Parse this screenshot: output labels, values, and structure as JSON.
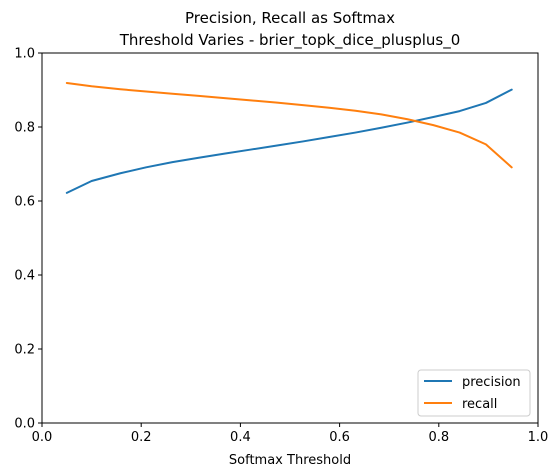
{
  "chart_data": {
    "type": "line",
    "title_lines": [
      "Precision, Recall as Softmax",
      "Threshold Varies - brier_topk_dice_plusplus_0"
    ],
    "xlabel": "Softmax Threshold",
    "ylabel": "",
    "xlim": [
      0.0,
      1.0
    ],
    "ylim": [
      0.0,
      1.0
    ],
    "xticks": [
      0.0,
      0.2,
      0.4,
      0.6,
      0.8,
      1.0
    ],
    "xtick_labels": [
      "0.0",
      "0.2",
      "0.4",
      "0.6",
      "0.8",
      "1.0"
    ],
    "yticks": [
      0.0,
      0.2,
      0.4,
      0.6,
      0.8,
      1.0
    ],
    "ytick_labels": [
      "0.0",
      "0.2",
      "0.4",
      "0.6",
      "0.8",
      "1.0"
    ],
    "grid": false,
    "legend_position": "lower right",
    "x": [
      0.05,
      0.1,
      0.158,
      0.21,
      0.263,
      0.316,
      0.368,
      0.421,
      0.474,
      0.526,
      0.579,
      0.632,
      0.684,
      0.737,
      0.789,
      0.842,
      0.895,
      0.947
    ],
    "series": [
      {
        "name": "precision",
        "color": "#1f77b4",
        "values": [
          0.622,
          0.654,
          0.675,
          0.691,
          0.705,
          0.717,
          0.728,
          0.739,
          0.75,
          0.761,
          0.773,
          0.785,
          0.798,
          0.812,
          0.827,
          0.843,
          0.865,
          0.901
        ]
      },
      {
        "name": "recall",
        "color": "#ff7f0e",
        "values": [
          0.919,
          0.91,
          0.902,
          0.896,
          0.89,
          0.884,
          0.878,
          0.872,
          0.866,
          0.859,
          0.852,
          0.844,
          0.834,
          0.821,
          0.805,
          0.785,
          0.753,
          0.691
        ]
      }
    ]
  }
}
